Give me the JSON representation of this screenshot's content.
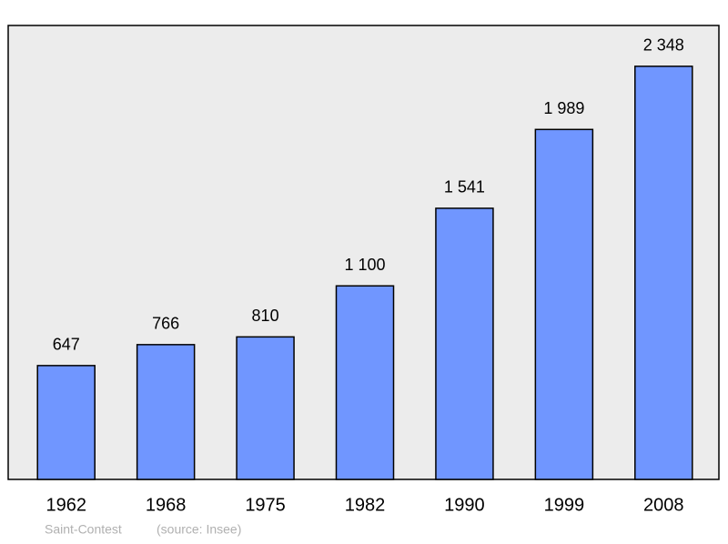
{
  "chart_data": {
    "type": "bar",
    "categories": [
      "1962",
      "1968",
      "1975",
      "1982",
      "1990",
      "1999",
      "2008"
    ],
    "values": [
      647,
      766,
      810,
      1100,
      1541,
      1989,
      2348
    ],
    "value_labels": [
      "647",
      "766",
      "810",
      "1 100",
      "1 541",
      "1 989",
      "2 348"
    ],
    "color": "#7096ff",
    "ylim": [
      0,
      2580
    ],
    "caption": "Saint-Contest",
    "source": "(source: Insee)"
  }
}
